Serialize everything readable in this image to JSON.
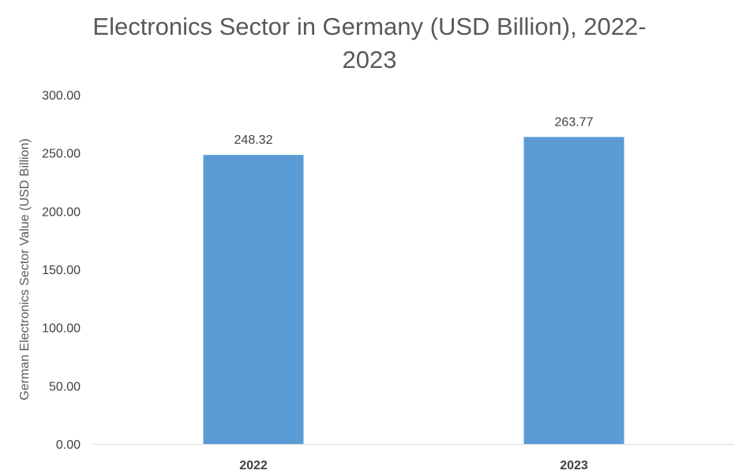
{
  "chart_data": {
    "type": "bar",
    "title": "Electronics Sector in Germany (USD Billion), 2022-2023",
    "title_lines": [
      "Electronics Sector in Germany (USD Billion), 2022-",
      "2023"
    ],
    "xlabel": "",
    "ylabel": "German Electronics Sector Value  (USD Billion)",
    "categories": [
      "2022",
      "2023"
    ],
    "values": [
      248.32,
      263.77
    ],
    "data_labels": [
      "248.32",
      "263.77"
    ],
    "ylim": [
      0,
      300
    ],
    "yticks": [
      0,
      50,
      100,
      150,
      200,
      250,
      300
    ],
    "ytick_labels": [
      "0.00",
      "50.00",
      "100.00",
      "150.00",
      "200.00",
      "250.00",
      "300.00"
    ],
    "bar_color": "#5B9BD5",
    "grid": false,
    "legend": "none"
  }
}
